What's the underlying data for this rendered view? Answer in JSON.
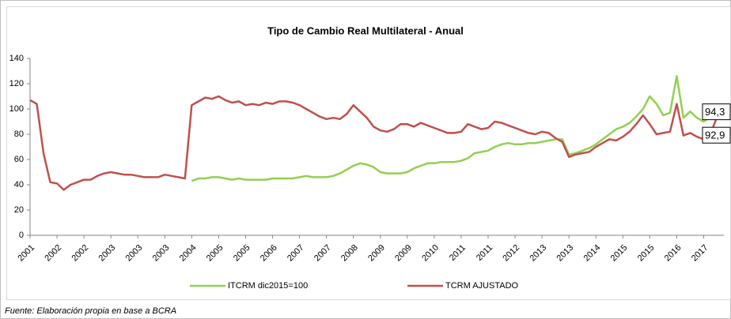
{
  "chart_data": {
    "type": "line",
    "title": "Tipo de Cambio Real Multilateral - Anual",
    "source": "Fuente: Elaboración propia en base a BCRA",
    "categories": [
      "2001",
      null,
      null,
      null,
      "2002",
      null,
      null,
      null,
      "2002",
      null,
      null,
      null,
      "2003",
      null,
      null,
      null,
      "2003",
      null,
      null,
      null,
      "2003",
      null,
      null,
      null,
      "2004",
      null,
      null,
      null,
      "2005",
      null,
      null,
      null,
      "2005",
      null,
      null,
      null,
      "2006",
      null,
      null,
      null,
      "2007",
      null,
      null,
      null,
      "2007",
      null,
      null,
      null,
      "2008",
      null,
      null,
      null,
      "2009",
      null,
      null,
      null,
      "2009",
      null,
      null,
      null,
      "2010",
      null,
      null,
      null,
      "2011",
      null,
      null,
      null,
      "2011",
      null,
      null,
      null,
      "2012",
      null,
      null,
      null,
      "2013",
      null,
      null,
      null,
      "2013",
      null,
      null,
      null,
      "2014",
      null,
      null,
      null,
      "2015",
      null,
      null,
      null,
      "2015",
      null,
      null,
      null,
      "2016",
      null,
      null,
      null,
      "2017",
      null,
      null,
      null
    ],
    "series": [
      {
        "name": "ITCRM dic2015=100",
        "color": "#92d050",
        "values": [
          null,
          null,
          null,
          null,
          null,
          null,
          null,
          null,
          null,
          null,
          null,
          null,
          null,
          null,
          null,
          null,
          null,
          null,
          null,
          null,
          null,
          null,
          null,
          null,
          43,
          45,
          45,
          46,
          46,
          45,
          44,
          45,
          44,
          44,
          44,
          44,
          45,
          45,
          45,
          45,
          46,
          47,
          46,
          46,
          46,
          47,
          49,
          52,
          55,
          57,
          56,
          54,
          50,
          49,
          49,
          49,
          50,
          53,
          55,
          57,
          57,
          58,
          58,
          58,
          59,
          61,
          65,
          66,
          67,
          70,
          72,
          73,
          72,
          72,
          73,
          73,
          74,
          75,
          76,
          76,
          64,
          65,
          67,
          69,
          72,
          76,
          80,
          84,
          86,
          89,
          94,
          100,
          110,
          104,
          95,
          97,
          126,
          93,
          98,
          93,
          90,
          94,
          99,
          94
        ]
      },
      {
        "name": "TCRM AJUSTADO",
        "color": "#c0504d",
        "values": [
          107,
          104,
          65,
          42,
          41,
          36,
          40,
          42,
          44,
          44,
          47,
          49,
          50,
          49,
          48,
          48,
          47,
          46,
          46,
          46,
          48,
          47,
          46,
          45,
          103,
          106,
          109,
          108,
          110,
          107,
          105,
          106,
          103,
          104,
          103,
          105,
          104,
          106,
          106,
          105,
          103,
          100,
          97,
          94,
          92,
          93,
          92,
          96,
          103,
          98,
          93,
          86,
          83,
          82,
          84,
          88,
          88,
          86,
          89,
          87,
          85,
          83,
          81,
          81,
          82,
          88,
          86,
          84,
          85,
          90,
          89,
          87,
          85,
          83,
          81,
          80,
          82,
          81,
          77,
          74,
          62,
          64,
          65,
          66,
          70,
          73,
          76,
          75,
          78,
          82,
          88,
          95,
          88,
          80,
          81,
          82,
          104,
          79,
          81,
          78,
          76,
          80,
          94,
          93
        ]
      }
    ],
    "annotations": [
      "94,3",
      "92,9"
    ],
    "ylim": [
      0,
      140
    ],
    "yticks": [
      0,
      20,
      40,
      60,
      80,
      100,
      120,
      140
    ],
    "grid": false,
    "legend": "bottom"
  }
}
